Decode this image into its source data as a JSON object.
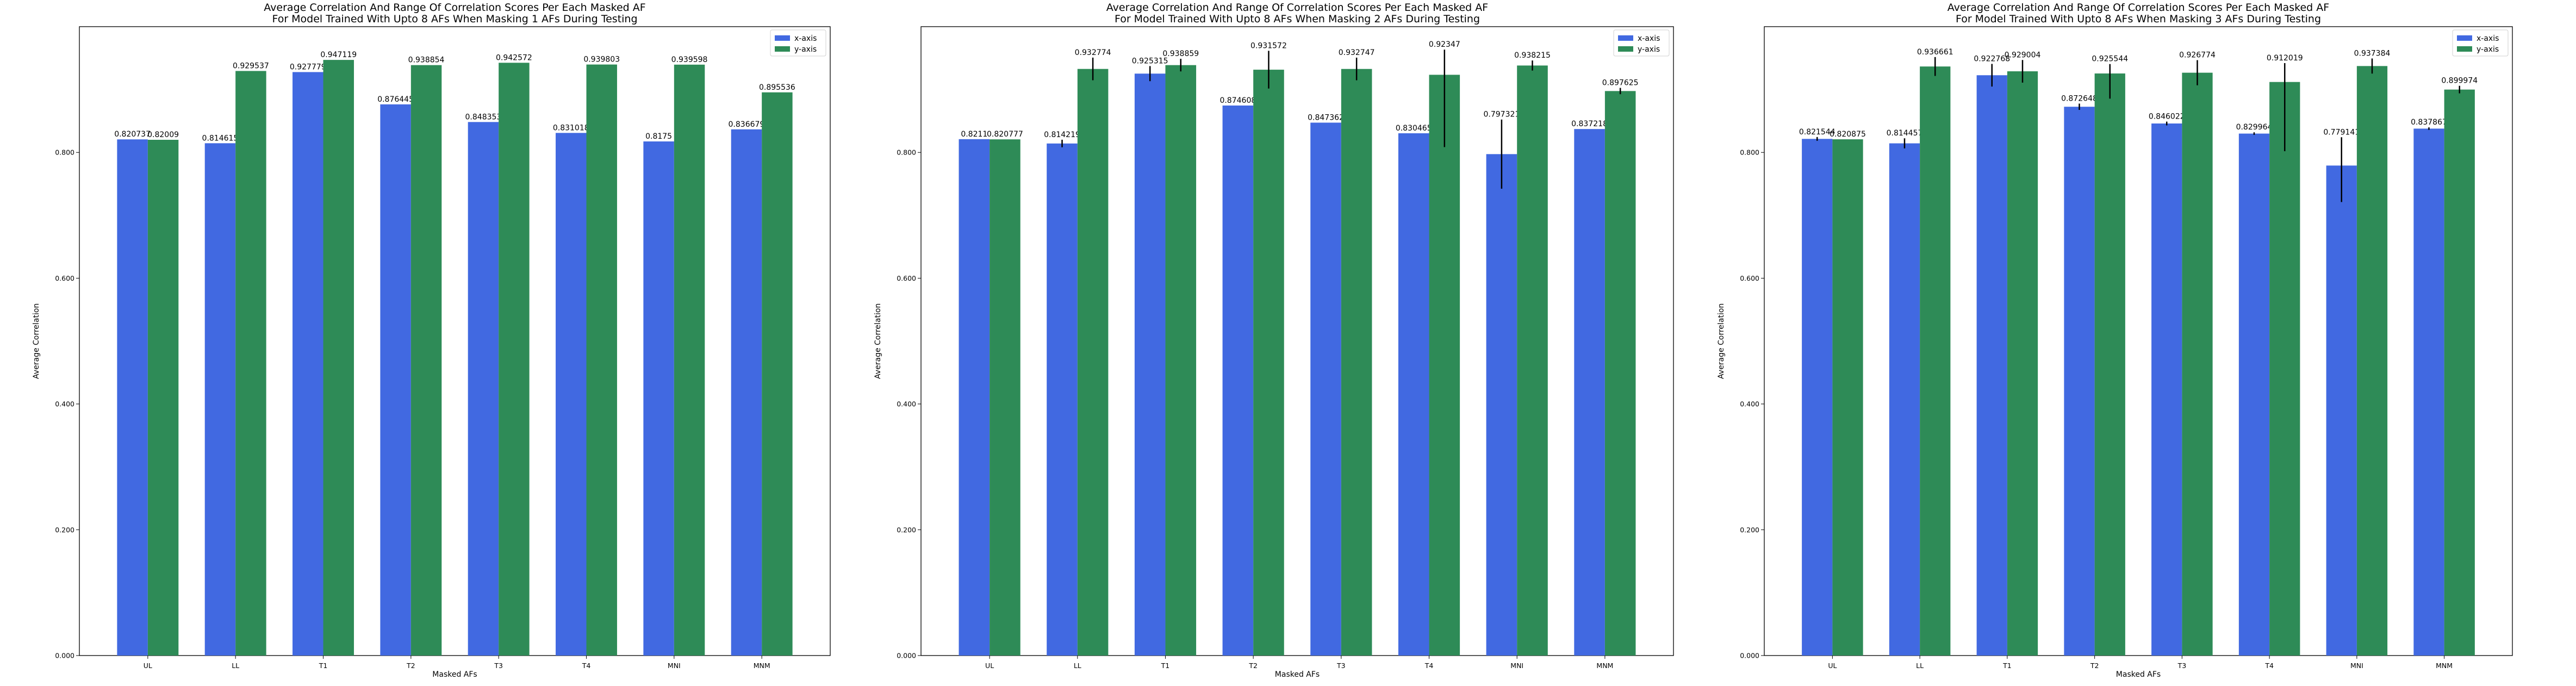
{
  "chart_data": [
    {
      "type": "bar",
      "title": "Average Correlation And Range Of Correlation Scores Per Each Masked AF",
      "subtitle": "For Model Trained With Upto 8 AFs When Masking 1 AFs During Testing",
      "xlabel": "Masked AFs",
      "ylabel": "Average Correlation",
      "ylim": [
        0,
        1.0
      ],
      "yticks": [
        "0.000",
        "0.200",
        "0.400",
        "0.600",
        "0.800"
      ],
      "legend": "top-right",
      "categories": [
        "UL",
        "LL",
        "T1",
        "T2",
        "T3",
        "T4",
        "MNI",
        "MNM"
      ],
      "series": [
        {
          "name": "x-axis",
          "color": "#4169e1",
          "values": [
            0.820737,
            0.814615,
            0.927779,
            0.876445,
            0.848353,
            0.831018,
            0.8175,
            0.836679
          ],
          "labels": [
            "0.820737",
            "0.814615",
            "0.927779",
            "0.876445",
            "0.848353",
            "0.831018",
            "0.8175",
            "0.836679"
          ],
          "err_low": [
            0,
            0,
            0,
            0,
            0,
            0,
            0,
            0
          ],
          "err_high": [
            0,
            0,
            0,
            0,
            0,
            0,
            0,
            0
          ]
        },
        {
          "name": "y-axis",
          "color": "#2e8b57",
          "values": [
            0.82009,
            0.929537,
            0.947119,
            0.938854,
            0.942572,
            0.939803,
            0.939598,
            0.895536
          ],
          "labels": [
            "0.82009",
            "0.929537",
            "0.947119",
            "0.938854",
            "0.942572",
            "0.939803",
            "0.939598",
            "0.895536"
          ],
          "err_low": [
            0,
            0,
            0,
            0,
            0,
            0,
            0,
            0
          ],
          "err_high": [
            0,
            0,
            0,
            0,
            0,
            0,
            0,
            0
          ]
        }
      ]
    },
    {
      "type": "bar",
      "title": "Average Correlation And Range Of Correlation Scores Per Each Masked AF",
      "subtitle": "For Model Trained With Upto 8 AFs When Masking 2 AFs During Testing",
      "xlabel": "Masked AFs",
      "ylabel": "Average Correlation",
      "ylim": [
        0,
        1.0
      ],
      "yticks": [
        "0.000",
        "0.200",
        "0.400",
        "0.600",
        "0.800"
      ],
      "legend": "top-right",
      "categories": [
        "UL",
        "LL",
        "T1",
        "T2",
        "T3",
        "T4",
        "MNI",
        "MNM"
      ],
      "series": [
        {
          "name": "x-axis",
          "color": "#4169e1",
          "values": [
            0.8211,
            0.814219,
            0.925315,
            0.874608,
            0.847362,
            0.830465,
            0.797321,
            0.837218
          ],
          "labels": [
            "0.8211",
            "0.814219",
            "0.925315",
            "0.874608",
            "0.847362",
            "0.830465",
            "0.797321",
            "0.837218"
          ],
          "err_low": [
            0,
            0.006,
            0.012,
            0,
            0,
            0,
            0.055,
            0
          ],
          "err_high": [
            0,
            0.006,
            0.012,
            0,
            0,
            0,
            0.055,
            0
          ]
        },
        {
          "name": "y-axis",
          "color": "#2e8b57",
          "values": [
            0.820777,
            0.932774,
            0.938859,
            0.931572,
            0.932747,
            0.92347,
            0.938215,
            0.897625
          ],
          "labels": [
            "0.820777",
            "0.932774",
            "0.938859",
            "0.931572",
            "0.932747",
            "0.92347",
            "0.938215",
            "0.897625"
          ],
          "err_low": [
            0,
            0.018,
            0.01,
            0.03,
            0.018,
            0.115,
            0.008,
            0.005
          ],
          "err_high": [
            0,
            0.018,
            0.01,
            0.03,
            0.018,
            0.04,
            0.008,
            0.005
          ]
        }
      ]
    },
    {
      "type": "bar",
      "title": "Average Correlation And Range Of Correlation Scores Per Each Masked AF",
      "subtitle": "For Model Trained With Upto 8 AFs When Masking 3 AFs During Testing",
      "xlabel": "Masked AFs",
      "ylabel": "Average Correlation",
      "ylim": [
        0,
        1.0
      ],
      "yticks": [
        "0.000",
        "0.200",
        "0.400",
        "0.600",
        "0.800"
      ],
      "legend": "top-right",
      "categories": [
        "UL",
        "LL",
        "T1",
        "T2",
        "T3",
        "T4",
        "MNI",
        "MNM"
      ],
      "series": [
        {
          "name": "x-axis",
          "color": "#4169e1",
          "values": [
            0.821544,
            0.814457,
            0.922768,
            0.872648,
            0.846022,
            0.829964,
            0.779141,
            0.837867
          ],
          "labels": [
            "0.821544",
            "0.814457",
            "0.922768",
            "0.872648",
            "0.846022",
            "0.829964",
            "0.779141",
            "0.837867"
          ],
          "err_low": [
            0.003,
            0.008,
            0.018,
            0.005,
            0.003,
            0.002,
            0.058,
            0.002
          ],
          "err_high": [
            0.003,
            0.008,
            0.018,
            0.005,
            0.003,
            0.002,
            0.045,
            0.002
          ]
        },
        {
          "name": "y-axis",
          "color": "#2e8b57",
          "values": [
            0.820875,
            0.936661,
            0.929004,
            0.925544,
            0.926774,
            0.912019,
            0.937384,
            0.899974
          ],
          "labels": [
            "0.820875",
            "0.936661",
            "0.929004",
            "0.925544",
            "0.926774",
            "0.912019",
            "0.937384",
            "0.899974"
          ],
          "err_low": [
            0,
            0.015,
            0.018,
            0.04,
            0.02,
            0.11,
            0.012,
            0.006
          ],
          "err_high": [
            0,
            0.015,
            0.018,
            0.015,
            0.02,
            0.03,
            0.012,
            0.006
          ]
        }
      ]
    }
  ]
}
